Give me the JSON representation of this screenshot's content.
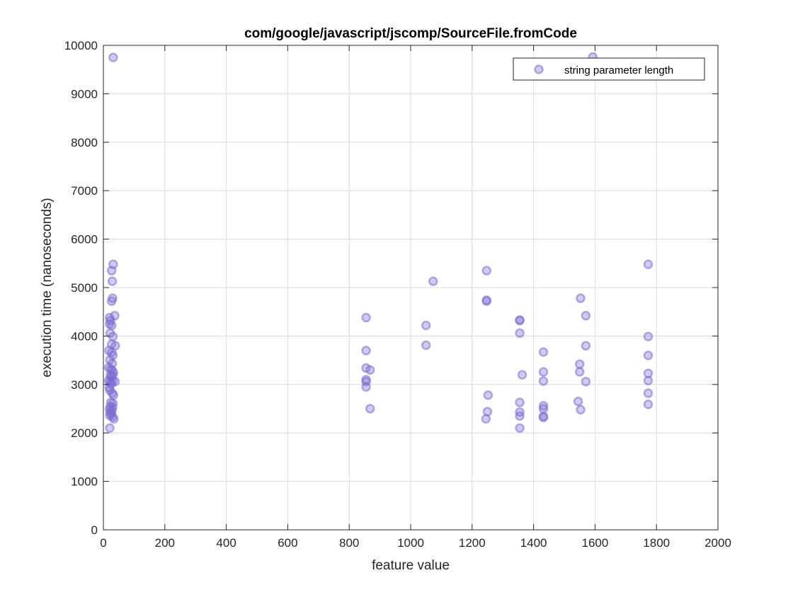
{
  "chart_data": {
    "type": "scatter",
    "title": "com/google/javascript/jscomp/SourceFile.fromCode",
    "xlabel": "feature value",
    "ylabel": "execution time (nanoseconds)",
    "xlim": [
      0,
      2000
    ],
    "ylim": [
      0,
      10000
    ],
    "xticks": [
      0,
      200,
      400,
      600,
      800,
      1000,
      1200,
      1400,
      1600,
      1800,
      2000
    ],
    "yticks": [
      0,
      1000,
      2000,
      3000,
      4000,
      5000,
      6000,
      7000,
      8000,
      9000,
      10000
    ],
    "grid": true,
    "legend_position": "top-right",
    "marker_color": "#7e6bd1",
    "series": [
      {
        "name": "string parameter length",
        "points": [
          [
            32,
            9750
          ],
          [
            32,
            5480
          ],
          [
            27,
            5350
          ],
          [
            29,
            5130
          ],
          [
            30,
            4780
          ],
          [
            27,
            4720
          ],
          [
            37,
            4420
          ],
          [
            20,
            4380
          ],
          [
            23,
            4320
          ],
          [
            20,
            4250
          ],
          [
            27,
            4220
          ],
          [
            22,
            4060
          ],
          [
            31,
            3990
          ],
          [
            27,
            3830
          ],
          [
            39,
            3800
          ],
          [
            18,
            3700
          ],
          [
            27,
            3660
          ],
          [
            31,
            3600
          ],
          [
            21,
            3510
          ],
          [
            29,
            3430
          ],
          [
            17,
            3350
          ],
          [
            24,
            3320
          ],
          [
            29,
            3290
          ],
          [
            33,
            3240
          ],
          [
            23,
            3200
          ],
          [
            30,
            3180
          ],
          [
            24,
            3150
          ],
          [
            17,
            3080
          ],
          [
            30,
            3070
          ],
          [
            38,
            3060
          ],
          [
            22,
            3050
          ],
          [
            26,
            3010
          ],
          [
            19,
            2940
          ],
          [
            21,
            2880
          ],
          [
            29,
            2820
          ],
          [
            33,
            2780
          ],
          [
            24,
            2630
          ],
          [
            31,
            2610
          ],
          [
            22,
            2540
          ],
          [
            30,
            2530
          ],
          [
            20,
            2480
          ],
          [
            28,
            2460
          ],
          [
            23,
            2420
          ],
          [
            26,
            2390
          ],
          [
            21,
            2360
          ],
          [
            30,
            2330
          ],
          [
            34,
            2290
          ],
          [
            21,
            2100
          ],
          [
            855,
            4380
          ],
          [
            855,
            3700
          ],
          [
            855,
            3340
          ],
          [
            855,
            3100
          ],
          [
            855,
            3060
          ],
          [
            855,
            2950
          ],
          [
            868,
            3300
          ],
          [
            868,
            2500
          ],
          [
            1050,
            4220
          ],
          [
            1050,
            3810
          ],
          [
            1073,
            5130
          ],
          [
            1247,
            5350
          ],
          [
            1247,
            4740
          ],
          [
            1247,
            4720
          ],
          [
            1250,
            2440
          ],
          [
            1245,
            2290
          ],
          [
            1252,
            2780
          ],
          [
            1355,
            4330
          ],
          [
            1355,
            4320
          ],
          [
            1355,
            4060
          ],
          [
            1355,
            2630
          ],
          [
            1355,
            2430
          ],
          [
            1355,
            2350
          ],
          [
            1355,
            2100
          ],
          [
            1363,
            3200
          ],
          [
            1432,
            3670
          ],
          [
            1432,
            3260
          ],
          [
            1432,
            3070
          ],
          [
            1432,
            2560
          ],
          [
            1432,
            2500
          ],
          [
            1432,
            2340
          ],
          [
            1432,
            2320
          ],
          [
            1593,
            9760
          ],
          [
            1553,
            4780
          ],
          [
            1550,
            3420
          ],
          [
            1550,
            3260
          ],
          [
            1545,
            2650
          ],
          [
            1553,
            2480
          ],
          [
            1570,
            4420
          ],
          [
            1570,
            3800
          ],
          [
            1570,
            3060
          ],
          [
            1773,
            5480
          ],
          [
            1773,
            3990
          ],
          [
            1773,
            3600
          ],
          [
            1773,
            3230
          ],
          [
            1773,
            3080
          ],
          [
            1773,
            2820
          ],
          [
            1773,
            2590
          ]
        ]
      }
    ]
  }
}
